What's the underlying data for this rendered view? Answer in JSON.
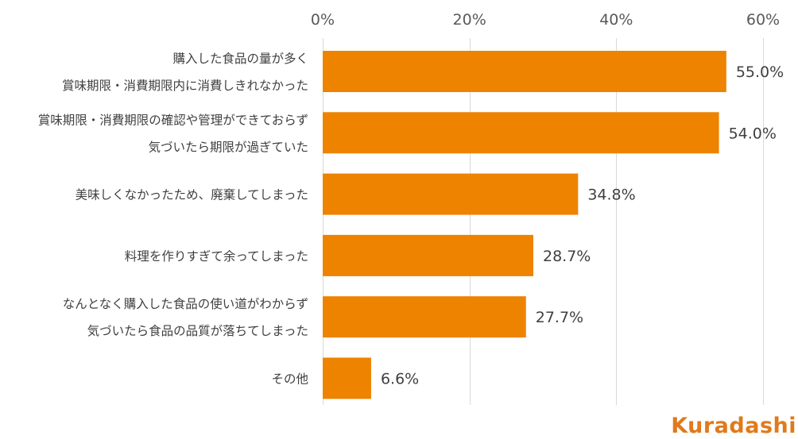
{
  "chart_data": {
    "type": "bar",
    "orientation": "horizontal",
    "categories": [
      [
        "購入した食品の量が多く",
        "賞味期限・消費期限内に消費しきれなかった"
      ],
      [
        "賞味期限・消費期限の確認や管理ができておらず",
        "気づいたら期限が過ぎていた"
      ],
      [
        "美味しくなかったため、廃棄してしまった"
      ],
      [
        "料理を作りすぎて余ってしまった"
      ],
      [
        "なんとなく購入した食品の使い道がわからず",
        "気づいたら食品の品質が落ちてしまった"
      ],
      [
        "その他"
      ]
    ],
    "values": [
      55.0,
      54.0,
      34.8,
      28.7,
      27.7,
      6.6
    ],
    "value_labels": [
      "55.0%",
      "54.0%",
      "34.8%",
      "28.7%",
      "27.7%",
      "6.6%"
    ],
    "xlim": [
      0,
      60
    ],
    "xticks": [
      0,
      20,
      40,
      60
    ],
    "xtick_labels": [
      "0%",
      "20%",
      "40%",
      "60%"
    ],
    "grid": true,
    "bar_color": "#EE8300",
    "title": "",
    "xlabel": "",
    "ylabel": ""
  },
  "brand": {
    "logo_text": "Kuradashi",
    "color": "#E2791A"
  }
}
